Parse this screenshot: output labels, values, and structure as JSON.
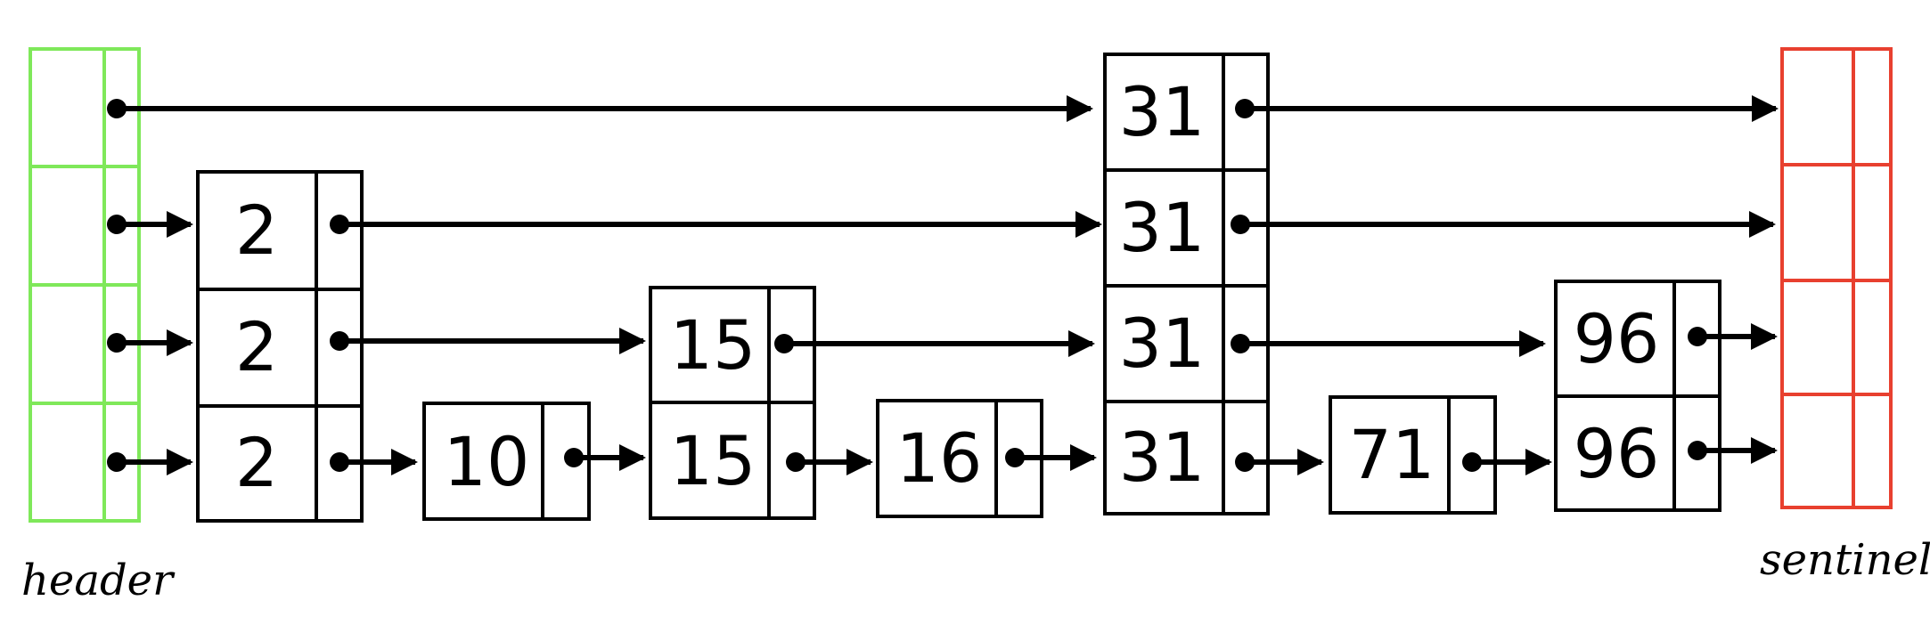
{
  "labels": {
    "header": "header",
    "sentinel": "sentinel"
  },
  "colors": {
    "header_border": "#7fe85a",
    "sentinel_border": "#e8402f",
    "node_border": "#000000"
  },
  "nodes": [
    {
      "key": "2",
      "levels": 3
    },
    {
      "key": "10",
      "levels": 1
    },
    {
      "key": "15",
      "levels": 2
    },
    {
      "key": "16",
      "levels": 1
    },
    {
      "key": "31",
      "levels": 4
    },
    {
      "key": "71",
      "levels": 1
    },
    {
      "key": "96",
      "levels": 2
    }
  ]
}
